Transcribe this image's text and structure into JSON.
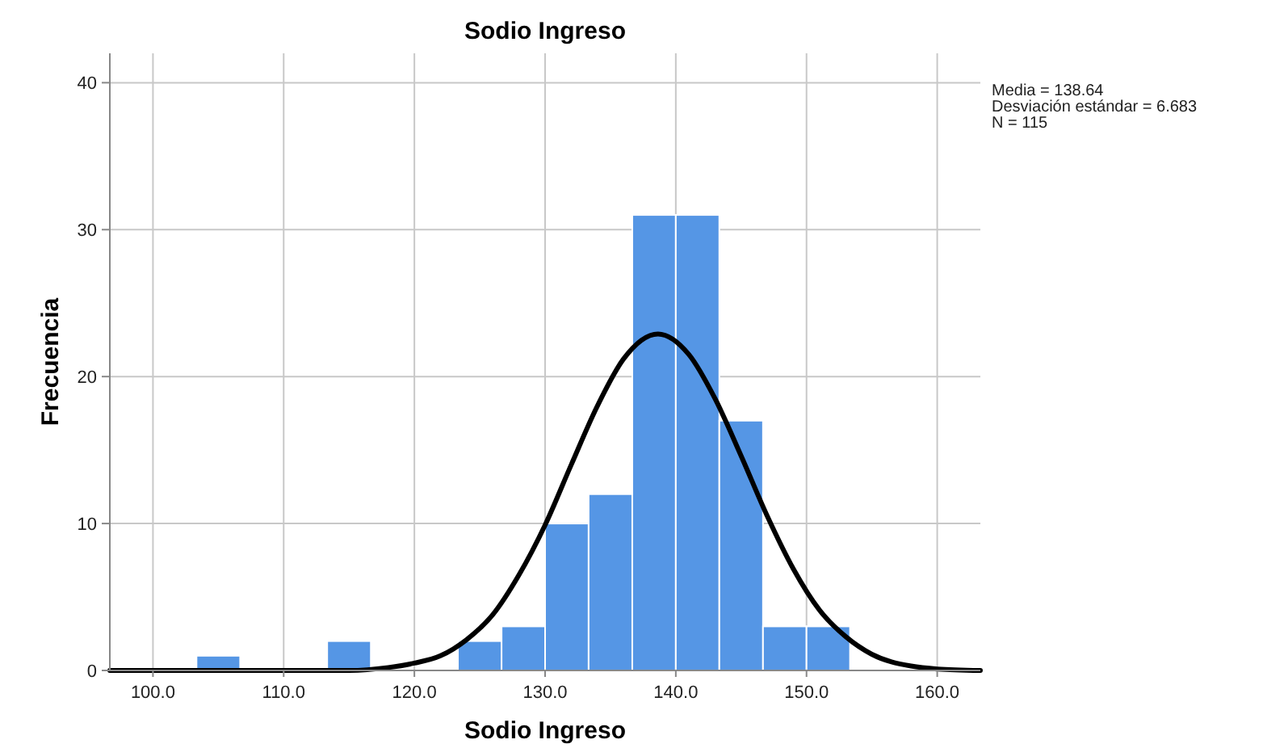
{
  "chart_data": {
    "type": "histogram",
    "title": "Sodio Ingreso",
    "xlabel": "Sodio Ingreso",
    "ylabel": "Frecuencia",
    "bins": [
      103.33,
      106.67,
      110,
      113.33,
      116.67,
      120,
      123.33,
      126.67,
      130,
      133.33,
      136.67,
      140,
      143.33,
      146.67,
      150,
      153.33
    ],
    "values": [
      1,
      0,
      0,
      2,
      0,
      0,
      2,
      3,
      10,
      12,
      31,
      31,
      17,
      3,
      3
    ],
    "color": "#5596e5",
    "series": [
      {
        "type": "line",
        "color": "#000000",
        "x": [
          96.7,
          100,
          105,
          110,
          115,
          118,
          120,
          122,
          124,
          126,
          128,
          130,
          132,
          134,
          136,
          138.64,
          141,
          143,
          145,
          147,
          149,
          151,
          153,
          155,
          158,
          160,
          163.3
        ],
        "values": [
          0,
          0,
          0,
          0,
          0,
          0.2,
          0.5,
          1,
          2.1,
          3.8,
          6.5,
          9.9,
          14,
          18,
          21.2,
          22.9,
          21.5,
          18.5,
          14.6,
          10.5,
          6.9,
          4.1,
          2.3,
          1.1,
          0.3,
          0.1,
          0
        ]
      }
    ],
    "xlim": [
      96.7,
      163.3
    ],
    "xticks": [
      {
        "value": 100,
        "label": "100.0"
      },
      {
        "value": 110,
        "label": "110.0"
      },
      {
        "value": 120,
        "label": "120.0"
      },
      {
        "value": 130,
        "label": "130.0"
      },
      {
        "value": 140,
        "label": "140.0"
      },
      {
        "value": 150,
        "label": "150.0"
      },
      {
        "value": 160,
        "label": "160.0"
      }
    ],
    "ylim": [
      0,
      42
    ],
    "yticks": [
      0,
      10,
      20,
      30,
      40
    ],
    "grid": true,
    "annotations": [
      "Media = 138.64",
      "Desviación estándar = 6.683",
      "N = 115"
    ]
  }
}
